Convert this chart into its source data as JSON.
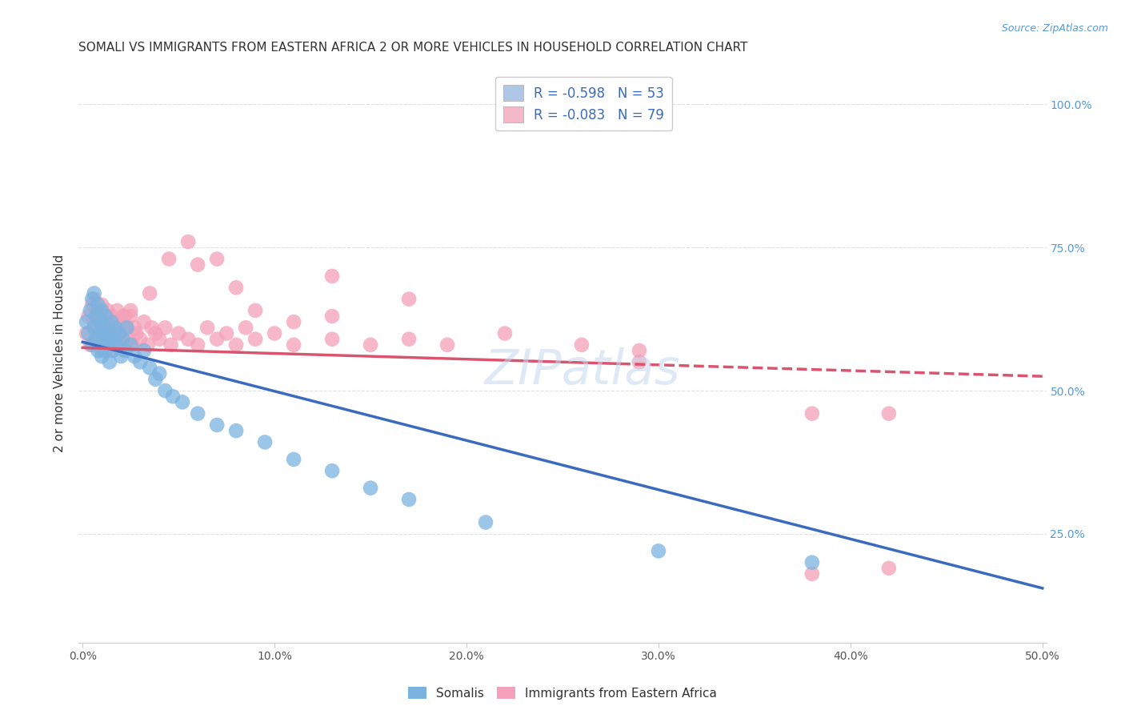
{
  "title": "SOMALI VS IMMIGRANTS FROM EASTERN AFRICA 2 OR MORE VEHICLES IN HOUSEHOLD CORRELATION CHART",
  "source": "Source: ZipAtlas.com",
  "ylabel": "2 or more Vehicles in Household",
  "xlim": [
    -0.002,
    0.502
  ],
  "ylim": [
    0.06,
    1.07
  ],
  "xtick_labels": [
    "0.0%",
    "10.0%",
    "20.0%",
    "30.0%",
    "40.0%",
    "50.0%"
  ],
  "xtick_values": [
    0.0,
    0.1,
    0.2,
    0.3,
    0.4,
    0.5
  ],
  "ytick_labels_right": [
    "100.0%",
    "75.0%",
    "50.0%",
    "25.0%"
  ],
  "ytick_values": [
    1.0,
    0.75,
    0.5,
    0.25
  ],
  "legend_labels": [
    "R = -0.598   N = 53",
    "R = -0.083   N = 79"
  ],
  "legend_colors": [
    "#aec6e8",
    "#f4b8c8"
  ],
  "somali_color": "#7bb3e0",
  "eastern_africa_color": "#f4a0b8",
  "somali_line_color": "#3a6bbf",
  "eastern_africa_line_color": "#d9546e",
  "watermark": "ZIPatlas",
  "background_color": "#ffffff",
  "grid_color": "#dddddd",
  "somali_line_x0": 0.0,
  "somali_line_y0": 0.585,
  "somali_line_x1": 0.5,
  "somali_line_y1": 0.155,
  "ea_line_x0": 0.0,
  "ea_line_y0": 0.575,
  "ea_line_x1": 0.5,
  "ea_line_y1": 0.525,
  "ea_line_solid_end": 0.28,
  "somali_x": [
    0.002,
    0.003,
    0.004,
    0.005,
    0.005,
    0.006,
    0.006,
    0.007,
    0.007,
    0.008,
    0.008,
    0.009,
    0.009,
    0.01,
    0.01,
    0.011,
    0.011,
    0.012,
    0.012,
    0.013,
    0.013,
    0.014,
    0.015,
    0.015,
    0.016,
    0.017,
    0.018,
    0.019,
    0.02,
    0.021,
    0.022,
    0.023,
    0.025,
    0.027,
    0.03,
    0.032,
    0.035,
    0.038,
    0.04,
    0.043,
    0.047,
    0.052,
    0.06,
    0.07,
    0.08,
    0.095,
    0.11,
    0.13,
    0.15,
    0.17,
    0.21,
    0.3,
    0.38
  ],
  "somali_y": [
    0.62,
    0.6,
    0.64,
    0.58,
    0.66,
    0.61,
    0.67,
    0.59,
    0.63,
    0.57,
    0.65,
    0.6,
    0.62,
    0.56,
    0.64,
    0.59,
    0.61,
    0.57,
    0.63,
    0.58,
    0.6,
    0.55,
    0.62,
    0.59,
    0.57,
    0.61,
    0.58,
    0.6,
    0.56,
    0.59,
    0.57,
    0.61,
    0.58,
    0.56,
    0.55,
    0.57,
    0.54,
    0.52,
    0.53,
    0.5,
    0.49,
    0.48,
    0.46,
    0.44,
    0.43,
    0.41,
    0.38,
    0.36,
    0.33,
    0.31,
    0.27,
    0.22,
    0.2
  ],
  "eastern_africa_x": [
    0.002,
    0.003,
    0.004,
    0.005,
    0.006,
    0.006,
    0.007,
    0.008,
    0.008,
    0.009,
    0.01,
    0.01,
    0.011,
    0.012,
    0.012,
    0.013,
    0.013,
    0.014,
    0.015,
    0.015,
    0.016,
    0.017,
    0.018,
    0.018,
    0.019,
    0.02,
    0.021,
    0.022,
    0.023,
    0.024,
    0.025,
    0.026,
    0.027,
    0.028,
    0.03,
    0.032,
    0.034,
    0.036,
    0.038,
    0.04,
    0.043,
    0.046,
    0.05,
    0.055,
    0.06,
    0.065,
    0.07,
    0.075,
    0.08,
    0.085,
    0.09,
    0.1,
    0.11,
    0.13,
    0.15,
    0.17,
    0.19,
    0.22,
    0.26,
    0.13,
    0.17,
    0.08,
    0.06,
    0.29,
    0.38,
    0.42,
    0.29,
    0.38,
    0.42,
    0.09,
    0.11,
    0.13,
    0.07,
    0.055,
    0.045,
    0.035,
    0.025,
    0.022,
    0.018
  ],
  "eastern_africa_y": [
    0.6,
    0.63,
    0.58,
    0.65,
    0.62,
    0.66,
    0.59,
    0.64,
    0.61,
    0.63,
    0.57,
    0.65,
    0.6,
    0.62,
    0.58,
    0.64,
    0.61,
    0.59,
    0.63,
    0.57,
    0.62,
    0.6,
    0.58,
    0.64,
    0.61,
    0.59,
    0.63,
    0.57,
    0.61,
    0.59,
    0.63,
    0.58,
    0.61,
    0.6,
    0.59,
    0.62,
    0.58,
    0.61,
    0.6,
    0.59,
    0.61,
    0.58,
    0.6,
    0.59,
    0.58,
    0.61,
    0.59,
    0.6,
    0.58,
    0.61,
    0.59,
    0.6,
    0.58,
    0.59,
    0.58,
    0.59,
    0.58,
    0.6,
    0.58,
    0.7,
    0.66,
    0.68,
    0.72,
    0.57,
    0.18,
    0.19,
    0.55,
    0.46,
    0.46,
    0.64,
    0.62,
    0.63,
    0.73,
    0.76,
    0.73,
    0.67,
    0.64,
    0.63,
    0.62
  ]
}
